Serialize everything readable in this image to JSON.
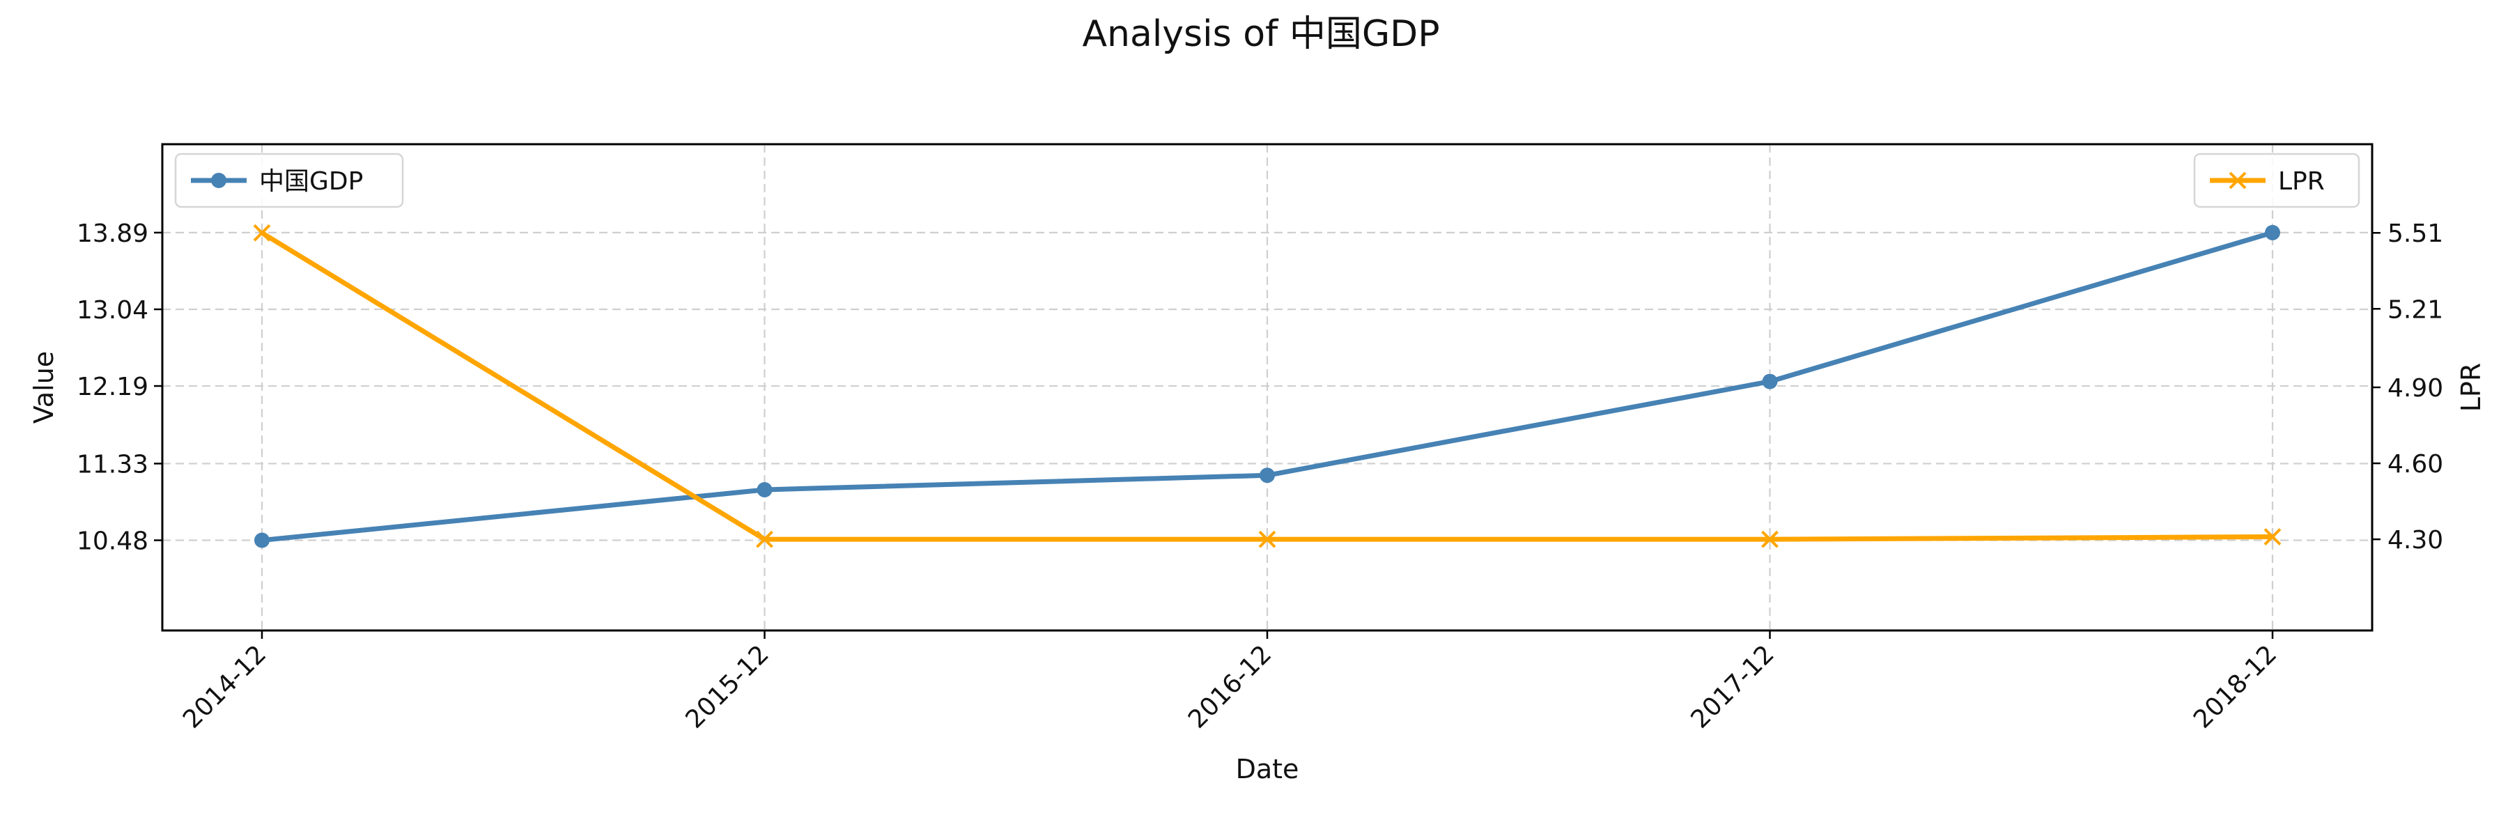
{
  "chart_data": {
    "type": "line",
    "title": "Analysis of 中国GDP",
    "xlabel": "Date",
    "ylabel": "Value",
    "ylabel_right": "LPR",
    "categories": [
      "2014-12",
      "2015-12",
      "2016-12",
      "2017-12",
      "2018-12"
    ],
    "series": [
      {
        "name": "中国GDP",
        "axis": "left",
        "values": [
          10.48,
          11.04,
          11.2,
          12.24,
          13.89
        ],
        "color": "#4682b4",
        "marker": "circle"
      },
      {
        "name": "LPR",
        "axis": "right",
        "values": [
          5.51,
          4.3,
          4.3,
          4.3,
          4.31
        ],
        "color": "#ffa500",
        "marker": "x"
      }
    ],
    "ylim_left": [
      9.48,
      14.87
    ],
    "yticks_left": [
      "10.48",
      "11.33",
      "12.19",
      "13.04",
      "13.89"
    ],
    "ylim_right": [
      3.94,
      5.86
    ],
    "yticks_right": [
      "4.30",
      "4.60",
      "4.90",
      "5.21",
      "5.51"
    ],
    "grid": true,
    "legend_left": "upper-left",
    "legend_right": "upper-right"
  }
}
